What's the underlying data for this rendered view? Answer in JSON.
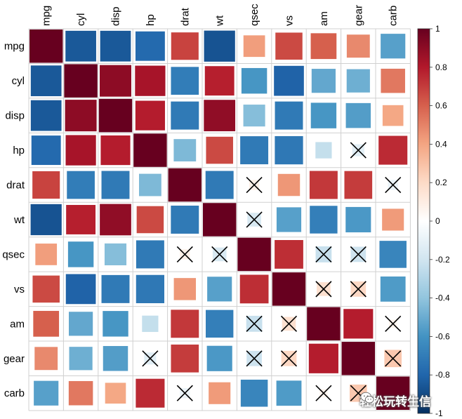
{
  "chart_data": {
    "type": "heatmap",
    "variables": [
      "mpg",
      "cyl",
      "disp",
      "hp",
      "drat",
      "wt",
      "qsec",
      "vs",
      "am",
      "gear",
      "carb"
    ],
    "matrix": [
      [
        1.0,
        -0.85,
        -0.85,
        -0.78,
        0.68,
        -0.87,
        0.42,
        0.66,
        0.6,
        0.48,
        -0.55
      ],
      [
        -0.85,
        1.0,
        0.9,
        0.83,
        -0.7,
        0.78,
        -0.59,
        -0.81,
        -0.52,
        -0.49,
        0.53
      ],
      [
        -0.85,
        0.9,
        1.0,
        0.79,
        -0.71,
        0.89,
        -0.43,
        -0.71,
        -0.59,
        -0.56,
        0.39
      ],
      [
        -0.78,
        0.83,
        0.79,
        1.0,
        -0.45,
        0.66,
        -0.71,
        -0.72,
        -0.24,
        -0.13,
        0.75
      ],
      [
        0.68,
        -0.7,
        -0.71,
        -0.45,
        1.0,
        -0.71,
        0.09,
        0.44,
        0.71,
        0.7,
        -0.09
      ],
      [
        -0.87,
        0.78,
        0.89,
        0.66,
        -0.71,
        1.0,
        -0.17,
        -0.55,
        -0.69,
        -0.58,
        0.43
      ],
      [
        0.42,
        -0.59,
        -0.43,
        -0.71,
        0.09,
        -0.17,
        1.0,
        0.74,
        -0.23,
        -0.21,
        -0.66
      ],
      [
        0.66,
        -0.81,
        -0.71,
        -0.72,
        0.44,
        -0.55,
        0.74,
        1.0,
        0.17,
        0.21,
        -0.57
      ],
      [
        0.6,
        -0.52,
        -0.59,
        -0.24,
        0.71,
        -0.69,
        -0.23,
        0.17,
        1.0,
        0.79,
        0.06
      ],
      [
        0.48,
        -0.49,
        -0.56,
        -0.13,
        0.7,
        -0.58,
        -0.21,
        0.21,
        0.79,
        1.0,
        0.27
      ],
      [
        -0.55,
        0.53,
        0.39,
        0.75,
        -0.09,
        0.43,
        -0.66,
        -0.57,
        0.06,
        0.27,
        1.0
      ]
    ],
    "insignificant": [
      [
        3,
        9
      ],
      [
        9,
        3
      ],
      [
        4,
        6
      ],
      [
        6,
        4
      ],
      [
        4,
        10
      ],
      [
        10,
        4
      ],
      [
        5,
        6
      ],
      [
        6,
        5
      ],
      [
        6,
        8
      ],
      [
        8,
        6
      ],
      [
        6,
        9
      ],
      [
        9,
        6
      ],
      [
        7,
        8
      ],
      [
        8,
        7
      ],
      [
        7,
        9
      ],
      [
        9,
        7
      ],
      [
        8,
        10
      ],
      [
        10,
        8
      ],
      [
        9,
        10
      ],
      [
        10,
        9
      ]
    ],
    "colorbar": {
      "range": [
        -1,
        1
      ],
      "ticks": [
        "1",
        "0.8",
        "0.6",
        "0.4",
        "0.2",
        "0",
        "-0.2",
        "-0.4",
        "-0.6",
        "-0.8",
        "-1"
      ]
    },
    "palette": [
      "#67001F",
      "#B2182B",
      "#D6604D",
      "#F4A582",
      "#FDDBC7",
      "#FFFFFF",
      "#D1E5F0",
      "#92C5DE",
      "#4393C3",
      "#2166AC",
      "#053061"
    ]
  },
  "watermark": {
    "text": "轻松玩转生信",
    "icon": "wechat-icon"
  }
}
